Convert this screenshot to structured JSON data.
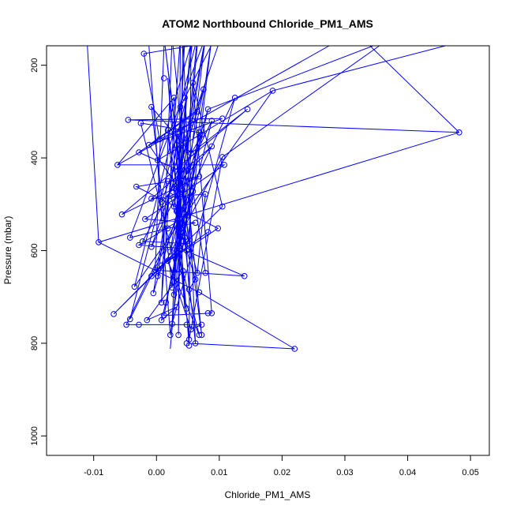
{
  "chart_data": {
    "type": "line",
    "title": "ATOM2 Northbound Chloride_PM1_AMS",
    "xlabel": "Chloride_PM1_AMS",
    "ylabel": "Pressure (mbar)",
    "xlim": [
      -0.0175,
      0.053
    ],
    "ylim": [
      1042,
      158
    ],
    "y_reversed": true,
    "x_ticks": [
      -0.01,
      0.0,
      0.01,
      0.02,
      0.03,
      0.04,
      0.05
    ],
    "x_tick_labels": [
      "-0.01",
      "0.00",
      "0.01",
      "0.02",
      "0.03",
      "0.04",
      "0.05"
    ],
    "y_ticks": [
      200,
      400,
      600,
      800,
      1000
    ],
    "y_tick_labels": [
      "200",
      "400",
      "600",
      "800",
      "1000"
    ],
    "grid": false,
    "legend": "none",
    "colors": {
      "series": "#0000ff",
      "axis": "#000000"
    },
    "series": [
      {
        "marker": "open-circle",
        "points": [
          [
            0.0048,
            800
          ],
          [
            0.022,
            812
          ],
          [
            0.0068,
            690
          ],
          [
            0.0032,
            600
          ],
          [
            0.0185,
            255
          ],
          [
            0.009,
            150
          ],
          [
            -0.002,
            175
          ],
          [
            0.0012,
            228
          ],
          [
            0.0058,
            238
          ],
          [
            0.0075,
            252
          ],
          [
            0.0028,
            270
          ],
          [
            0.0045,
            270
          ],
          [
            0.0125,
            270
          ],
          [
            -0.0008,
            290
          ],
          [
            0.0038,
            290
          ],
          [
            0.0082,
            295
          ],
          [
            0.0145,
            295
          ],
          [
            0.0065,
            300
          ],
          [
            0.0105,
            315
          ],
          [
            -0.0045,
            318
          ],
          [
            0.0088,
            320
          ],
          [
            -0.0025,
            325
          ],
          [
            0.0055,
            325
          ],
          [
            0.0018,
            340
          ],
          [
            0.0068,
            345
          ],
          [
            0.0035,
            348
          ],
          [
            0.0072,
            350
          ],
          [
            0.0482,
            345
          ],
          [
            0.0005,
            360
          ],
          [
            -0.0012,
            372
          ],
          [
            0.0032,
            372
          ],
          [
            0.0088,
            375
          ],
          [
            -0.0028,
            388
          ],
          [
            0.0055,
            390
          ],
          [
            0.0105,
            398
          ],
          [
            0.0002,
            405
          ],
          [
            -0.0062,
            415
          ],
          [
            0.0108,
            415
          ],
          [
            0.0038,
            428
          ],
          [
            0.0068,
            440
          ],
          [
            0.0018,
            450
          ],
          [
            -0.0032,
            462
          ],
          [
            0.0028,
            465
          ],
          [
            0.0042,
            470
          ],
          [
            0.0058,
            472
          ],
          [
            0.0078,
            478
          ],
          [
            0.0022,
            482
          ],
          [
            -0.0008,
            488
          ],
          [
            0.0048,
            490
          ],
          [
            0.0008,
            495
          ],
          [
            0.0028,
            505
          ],
          [
            0.0105,
            505
          ],
          [
            0.0032,
            515
          ],
          [
            -0.0055,
            522
          ],
          [
            0.0048,
            525
          ],
          [
            -0.0018,
            532
          ],
          [
            0.0062,
            540
          ],
          [
            0.0018,
            552
          ],
          [
            0.0098,
            552
          ],
          [
            0.0082,
            560
          ],
          [
            -0.0042,
            572
          ],
          [
            0.0045,
            572
          ],
          [
            -0.0022,
            580
          ],
          [
            -0.0092,
            582
          ],
          [
            0.0052,
            585
          ],
          [
            -0.0028,
            588
          ],
          [
            -0.0008,
            592
          ],
          [
            0.0038,
            595
          ],
          [
            0.0048,
            600
          ],
          [
            0.0022,
            602
          ],
          [
            0.0018,
            622
          ],
          [
            0.0008,
            632
          ],
          [
            -0.0002,
            642
          ],
          [
            0.0042,
            644
          ],
          [
            0.0065,
            648
          ],
          [
            0.0078,
            648
          ],
          [
            0.0002,
            655
          ],
          [
            -0.0008,
            655
          ],
          [
            0.014,
            655
          ],
          [
            0.0062,
            662
          ],
          [
            -0.0035,
            678
          ],
          [
            0.0025,
            680
          ],
          [
            0.0052,
            684
          ],
          [
            -0.0005,
            692
          ],
          [
            0.0028,
            695
          ],
          [
            0.0008,
            712
          ],
          [
            0.0015,
            712
          ],
          [
            0.0032,
            722
          ],
          [
            0.0048,
            725
          ],
          [
            0.0082,
            735
          ],
          [
            0.0088,
            735
          ],
          [
            -0.0068,
            737
          ],
          [
            0.0012,
            740
          ],
          [
            -0.0042,
            748
          ],
          [
            0.0008,
            750
          ],
          [
            -0.0015,
            750
          ],
          [
            0.0025,
            758
          ],
          [
            0.0048,
            760
          ],
          [
            0.0072,
            760
          ],
          [
            -0.0048,
            760
          ],
          [
            -0.0028,
            760
          ],
          [
            0.0055,
            770
          ],
          [
            0.0022,
            782
          ],
          [
            0.0035,
            782
          ],
          [
            0.0068,
            782
          ],
          [
            0.0072,
            782
          ],
          [
            0.0052,
            792
          ],
          [
            0.0062,
            800
          ],
          [
            0.0052,
            805
          ]
        ],
        "path": [
          [
            0.0048,
            800
          ],
          [
            0.022,
            812
          ],
          [
            0.0068,
            690
          ],
          [
            -0.0092,
            582
          ],
          [
            0.0482,
            345
          ],
          [
            -0.0045,
            318
          ],
          [
            0.0105,
            315
          ],
          [
            -0.0012,
            372
          ],
          [
            0.0048,
            490
          ],
          [
            0.0012,
            740
          ],
          [
            0.0088,
            735
          ],
          [
            0.0058,
            238
          ],
          [
            0.0105,
            505
          ],
          [
            -0.0068,
            737
          ],
          [
            0.0032,
            600
          ],
          [
            0.0065,
            140
          ],
          [
            -0.0035,
            678
          ],
          [
            0.0185,
            255
          ],
          [
            0.0002,
            405
          ],
          [
            0.0058,
            140
          ],
          [
            0.0028,
            505
          ],
          [
            0.0078,
            140
          ],
          [
            0.0032,
            648
          ],
          [
            -0.0025,
            325
          ],
          [
            0.0068,
            345
          ],
          [
            0.0022,
            782
          ],
          [
            0.0088,
            140
          ],
          [
            0.0048,
            600
          ],
          [
            0.0018,
            340
          ],
          [
            0.0052,
            792
          ],
          [
            0.0105,
            398
          ],
          [
            0.0002,
            655
          ],
          [
            0.0032,
            372
          ],
          [
            0.0072,
            782
          ],
          [
            0.0025,
            140
          ],
          [
            0.0008,
            712
          ],
          [
            0.0038,
            140
          ],
          [
            0.0035,
            782
          ],
          [
            0.0042,
            140
          ],
          [
            0.0062,
            800
          ],
          [
            0.0018,
            228
          ],
          [
            0.0052,
            805
          ],
          [
            0.0055,
            140
          ],
          [
            0.0025,
            680
          ],
          [
            -0.0008,
            290
          ],
          [
            0.0055,
            390
          ],
          [
            0.0145,
            295
          ],
          [
            -0.0055,
            522
          ],
          [
            0.0068,
            440
          ],
          [
            -0.0032,
            462
          ],
          [
            0.0098,
            552
          ],
          [
            0.0008,
            632
          ],
          [
            0.0082,
            560
          ],
          [
            -0.0002,
            642
          ],
          [
            0.014,
            655
          ],
          [
            0.0038,
            595
          ],
          [
            -0.0028,
            588
          ],
          [
            0.0048,
            525
          ],
          [
            0.0012,
            140
          ],
          [
            0.0052,
            585
          ],
          [
            -0.0022,
            580
          ],
          [
            0.0072,
            350
          ],
          [
            0.0022,
            602
          ],
          [
            0.0078,
            140
          ],
          [
            -0.0042,
            572
          ],
          [
            0.0018,
            552
          ],
          [
            0.0062,
            540
          ],
          [
            -0.0018,
            532
          ],
          [
            0.0108,
            415
          ],
          [
            -0.0062,
            415
          ],
          [
            0.0028,
            270
          ],
          [
            0.0045,
            725
          ],
          [
            0.0032,
            515
          ],
          [
            0.0045,
            140
          ],
          [
            0.0025,
            758
          ],
          [
            0.0125,
            270
          ],
          [
            -0.0048,
            760
          ],
          [
            0.0048,
            760
          ],
          [
            -0.0028,
            760
          ],
          [
            0.0072,
            760
          ],
          [
            0.0055,
            770
          ],
          [
            0.0018,
            622
          ],
          [
            0.0068,
            782
          ],
          [
            0.0042,
            644
          ],
          [
            -0.0015,
            750
          ],
          [
            0.0032,
            722
          ],
          [
            0.0008,
            750
          ],
          [
            0.0088,
            320
          ],
          [
            -0.0008,
            592
          ],
          [
            0.0065,
            300
          ],
          [
            -0.0028,
            388
          ],
          [
            0.0038,
            428
          ],
          [
            0.0028,
            695
          ],
          [
            0.0048,
            270
          ],
          [
            -0.0042,
            748
          ],
          [
            0.0058,
            472
          ],
          [
            0.0015,
            712
          ],
          [
            0.0082,
            295
          ],
          [
            -0.0005,
            692
          ],
          [
            0.0035,
            348
          ],
          [
            0.0052,
            684
          ],
          [
            0.0062,
            662
          ],
          [
            0.0022,
            482
          ],
          [
            0.0042,
            470
          ],
          [
            0.0075,
            252
          ],
          [
            0.0028,
            465
          ],
          [
            0.0065,
            648
          ],
          [
            0.0078,
            478
          ],
          [
            -0.0008,
            488
          ],
          [
            0.0088,
            375
          ],
          [
            0.0008,
            495
          ],
          [
            0.0062,
            300
          ],
          [
            -0.0012,
            372
          ],
          [
            0.0055,
            325
          ],
          [
            0.0005,
            360
          ],
          [
            -0.002,
            175
          ],
          [
            0.009,
            150
          ],
          [
            0.0038,
            290
          ],
          [
            0.0078,
            648
          ]
        ],
        "edge_lines": [
          [
            [
              -0.011,
              158
            ],
            [
              -0.0092,
              582
            ]
          ],
          [
            [
              0.0065,
              158
            ],
            [
              0.0022,
              812
            ]
          ],
          [
            [
              0.0275,
              158
            ],
            [
              -0.0062,
              415
            ]
          ],
          [
            [
              0.0355,
              158
            ],
            [
              0.0105,
              398
            ]
          ],
          [
            [
              0.0345,
              158
            ],
            [
              0.0082,
              295
            ]
          ],
          [
            [
              0.034,
              158
            ],
            [
              0.0482,
              345
            ]
          ],
          [
            [
              0.046,
              158
            ],
            [
              0.0185,
              255
            ]
          ],
          [
            [
              0.0098,
              158
            ],
            [
              0.0062,
              300
            ]
          ],
          [
            [
              0.0012,
              158
            ],
            [
              -0.0002,
              642
            ]
          ],
          [
            [
              -0.0012,
              158
            ],
            [
              0.0022,
              782
            ]
          ]
        ]
      }
    ]
  }
}
